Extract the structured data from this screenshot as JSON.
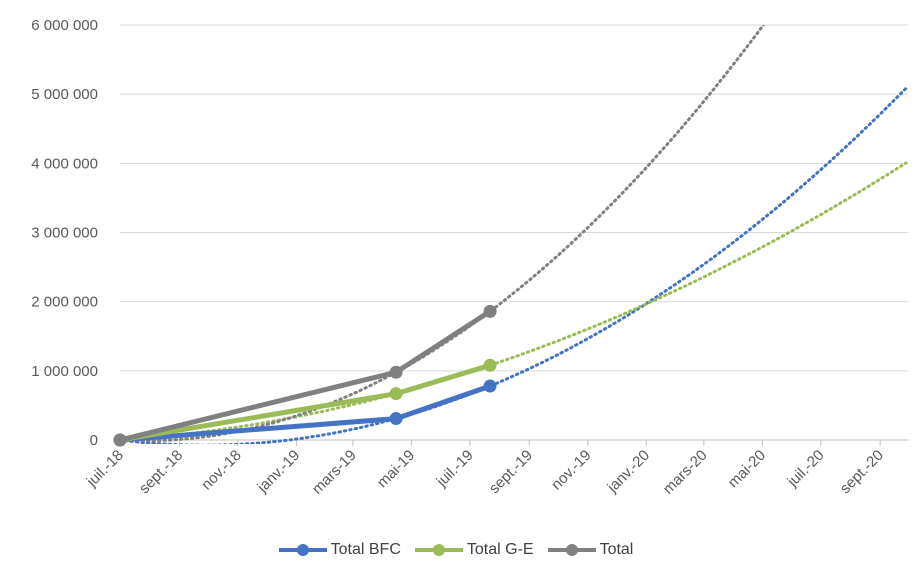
{
  "chart_data": {
    "type": "line",
    "x_tick_labels": [
      "juil.-18",
      "sept.-18",
      "nov.-18",
      "janv.-19",
      "mars-19",
      "mai-19",
      "juil.-19",
      "sept.-19",
      "nov.-19",
      "janv.-20",
      "mars-20",
      "mai-20",
      "juil.-20",
      "sept.-20"
    ],
    "x_range": [
      "2018-07-01",
      "2020-09-30"
    ],
    "y_tick_labels": [
      "0",
      "1 000 000",
      "2 000 000",
      "3 000 000",
      "4 000 000",
      "5 000 000",
      "6 000 000"
    ],
    "ylim": [
      0,
      6000000
    ],
    "grid": true,
    "legend_position": "bottom",
    "series": [
      {
        "name": "Total BFC",
        "color": "#4472C4",
        "points": [
          [
            "2018-07-01",
            0
          ],
          [
            "2019-04-15",
            310000
          ],
          [
            "2019-07-22",
            780000
          ]
        ],
        "trendline": "polynomial"
      },
      {
        "name": "Total G-E",
        "color": "#9BBB59",
        "points": [
          [
            "2018-07-01",
            0
          ],
          [
            "2019-04-15",
            670000
          ],
          [
            "2019-07-22",
            1080000
          ]
        ],
        "trendline": "polynomial"
      },
      {
        "name": "Total",
        "color": "#808080",
        "points": [
          [
            "2018-07-01",
            0
          ],
          [
            "2019-04-15",
            980000
          ],
          [
            "2019-07-22",
            1860000
          ]
        ],
        "trendline": "polynomial"
      }
    ]
  }
}
